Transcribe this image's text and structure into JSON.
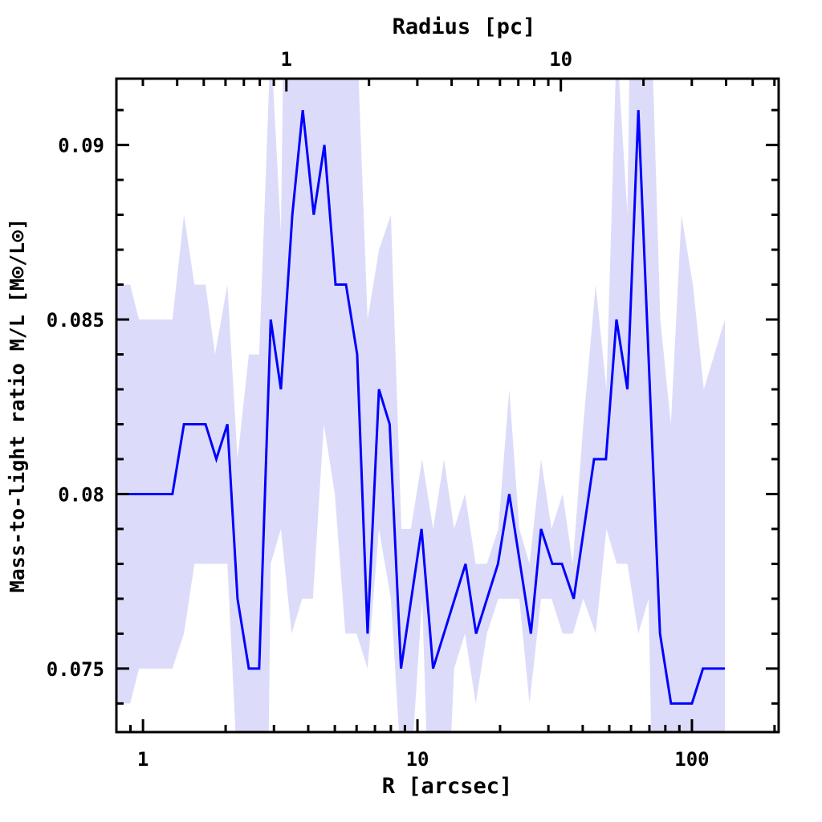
{
  "chart_data": {
    "type": "line",
    "title": "",
    "xlabel": "R [arcsec]",
    "ylabel": "Mass-to-light ratio M/L [M⊙/L⊙]",
    "top_xlabel": "Radius [pc]",
    "xscale": "log",
    "xlim": [
      0.8,
      207
    ],
    "ylim": [
      0.07318,
      0.0919
    ],
    "xticks": [
      1,
      10,
      100
    ],
    "xtick_labels": [
      "1",
      "10",
      "100"
    ],
    "yticks": [
      0.075,
      0.08,
      0.085,
      0.09
    ],
    "ytick_labels": [
      "0.075",
      "0.08",
      "0.085",
      "0.09"
    ],
    "top_xticks_pc": [
      1,
      10
    ],
    "top_xtick_labels": [
      "1",
      "10"
    ],
    "arcsec_per_pc": 3.33,
    "grid": false,
    "line_color": "#0000ff",
    "band_color": "#dcdcfa",
    "series": [
      {
        "name": "M/L",
        "x": [
          0.8,
          1.28,
          1.41,
          1.69,
          1.85,
          2.03,
          2.21,
          2.43,
          2.65,
          2.92,
          3.18,
          3.5,
          3.82,
          4.19,
          4.58,
          5.03,
          5.49,
          6.03,
          6.58,
          7.24,
          7.92,
          8.71,
          10.35,
          11.4,
          14.97,
          16.35,
          19.65,
          21.6,
          25.9,
          28.2,
          31.0,
          33.6,
          37.1,
          44.0,
          48.6,
          53.1,
          58.2,
          63.8,
          76.5,
          83.9,
          100,
          109.7,
          131.8
        ],
        "y": [
          0.08,
          0.08,
          0.082,
          0.082,
          0.081,
          0.082,
          0.077,
          0.075,
          0.075,
          0.085,
          0.083,
          0.088,
          0.091,
          0.088,
          0.09,
          0.086,
          0.086,
          0.084,
          0.076,
          0.083,
          0.082,
          0.075,
          0.079,
          0.075,
          0.078,
          0.076,
          0.078,
          0.08,
          0.076,
          0.079,
          0.078,
          0.078,
          0.077,
          0.081,
          0.081,
          0.085,
          0.083,
          0.091,
          0.076,
          0.074,
          0.074,
          0.075,
          0.075
        ]
      }
    ],
    "band_upper": {
      "x": [
        0.8,
        0.898,
        0.967,
        1.28,
        1.41,
        1.54,
        1.69,
        1.83,
        2.03,
        2.21,
        2.43,
        2.65,
        2.92,
        3.18,
        3.25,
        6.03,
        6.58,
        7.24,
        8.0,
        8.74,
        9.46,
        10.4,
        11.4,
        12.5,
        13.6,
        14.9,
        16.3,
        17.9,
        19.7,
        21.6,
        23.5,
        25.6,
        28.2,
        30.8,
        33.8,
        36.8,
        40.2,
        44.6,
        48.8,
        53.2,
        58.2,
        59.4,
        71.5,
        76.7,
        83.8,
        91.6,
        100.8,
        110.5,
        131.8
      ],
      "y": [
        0.086,
        0.086,
        0.085,
        0.085,
        0.088,
        0.086,
        0.086,
        0.084,
        0.086,
        0.081,
        0.084,
        0.084,
        0.093,
        0.0875,
        0.093,
        0.093,
        0.085,
        0.087,
        0.088,
        0.079,
        0.079,
        0.081,
        0.079,
        0.081,
        0.079,
        0.08,
        0.078,
        0.078,
        0.079,
        0.083,
        0.079,
        0.078,
        0.081,
        0.079,
        0.08,
        0.078,
        0.082,
        0.086,
        0.083,
        0.093,
        0.088,
        0.093,
        0.093,
        0.085,
        0.082,
        0.088,
        0.086,
        0.083,
        0.085
      ]
    },
    "band_lower": {
      "x": [
        0.8,
        0.898,
        0.967,
        1.28,
        1.41,
        1.54,
        2.03,
        2.21,
        2.86,
        2.92,
        3.18,
        3.48,
        3.8,
        4.16,
        4.56,
        5.0,
        5.46,
        6.0,
        6.58,
        7.24,
        8.0,
        8.74,
        9.46,
        10.4,
        10.9,
        13.1,
        13.6,
        14.9,
        16.3,
        17.9,
        19.7,
        23.5,
        25.6,
        28.2,
        30.8,
        33.8,
        36.8,
        40.2,
        44.6,
        48.8,
        53.2,
        58.2,
        63.8,
        69.5,
        71.5,
        131.8
      ],
      "y": [
        0.074,
        0.074,
        0.075,
        0.075,
        0.076,
        0.078,
        0.078,
        0.072,
        0.072,
        0.078,
        0.079,
        0.076,
        0.077,
        0.077,
        0.082,
        0.08,
        0.076,
        0.076,
        0.075,
        0.079,
        0.077,
        0.072,
        0.072,
        0.077,
        0.072,
        0.072,
        0.075,
        0.076,
        0.074,
        0.076,
        0.077,
        0.077,
        0.074,
        0.077,
        0.077,
        0.076,
        0.076,
        0.077,
        0.076,
        0.079,
        0.078,
        0.078,
        0.076,
        0.077,
        0.072,
        0.072
      ]
    }
  }
}
